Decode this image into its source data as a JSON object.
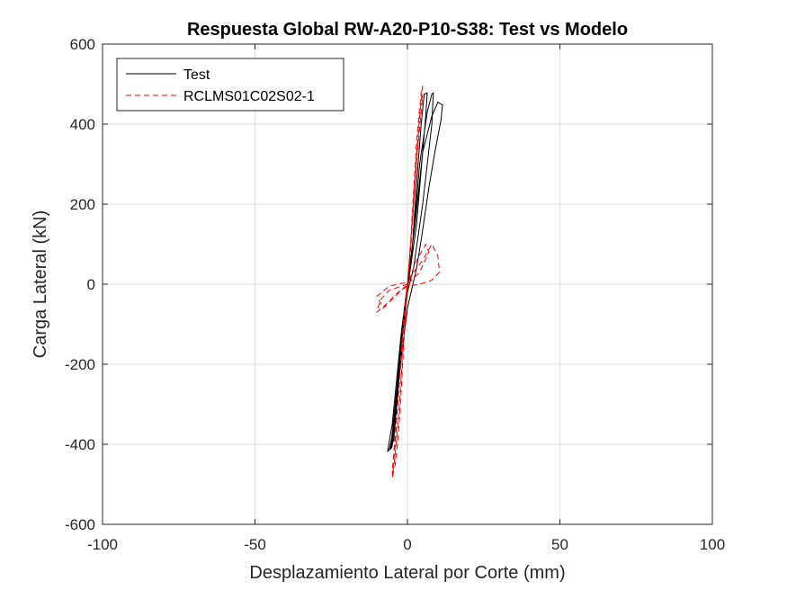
{
  "chart_data": {
    "type": "line",
    "title": "Respuesta Global RW-A20-P10-S38: Test vs Modelo",
    "xlabel": "Desplazamiento Lateral por Corte (mm)",
    "ylabel": "Carga Lateral (kN)",
    "xlim": [
      -100,
      100
    ],
    "ylim": [
      -600,
      600
    ],
    "xticks": [
      -100,
      -50,
      0,
      50,
      100
    ],
    "yticks": [
      -600,
      -400,
      -200,
      0,
      200,
      400,
      600
    ],
    "xtick_labels": [
      "-100",
      "-50",
      "0",
      "50",
      "100"
    ],
    "ytick_labels": [
      "-600",
      "-400",
      "-200",
      "0",
      "200",
      "400",
      "600"
    ],
    "grid": true,
    "legend_position": "top-left",
    "series": [
      {
        "name": "Test",
        "color": "#000000",
        "style": "solid",
        "points": [
          [
            0,
            0
          ],
          [
            1.5,
            80
          ],
          [
            3,
            250
          ],
          [
            4.5,
            400
          ],
          [
            5.5,
            475
          ],
          [
            6.5,
            478
          ],
          [
            6,
            420
          ],
          [
            3,
            150
          ],
          [
            1,
            40
          ],
          [
            0,
            -10
          ],
          [
            -1.5,
            -100
          ],
          [
            -3,
            -260
          ],
          [
            -4.5,
            -390
          ],
          [
            -6,
            -415
          ],
          [
            -5,
            -380
          ],
          [
            -2,
            -150
          ],
          [
            -0.5,
            -30
          ],
          [
            0,
            0
          ],
          [
            2,
            120
          ],
          [
            4,
            300
          ],
          [
            6.5,
            430
          ],
          [
            8,
            475
          ],
          [
            8.5,
            478
          ],
          [
            8,
            400
          ],
          [
            5,
            200
          ],
          [
            2,
            40
          ],
          [
            0,
            -20
          ],
          [
            -2,
            -140
          ],
          [
            -4,
            -300
          ],
          [
            -5.5,
            -410
          ],
          [
            -6.5,
            -418
          ],
          [
            -5,
            -350
          ],
          [
            -2,
            -120
          ],
          [
            0,
            0
          ],
          [
            2.5,
            150
          ],
          [
            5,
            330
          ],
          [
            8,
            420
          ],
          [
            10,
            455
          ],
          [
            11,
            450
          ],
          [
            11.5,
            448
          ],
          [
            11,
            410
          ],
          [
            9,
            330
          ],
          [
            7,
            240
          ],
          [
            4.5,
            110
          ],
          [
            3,
            40
          ],
          [
            1.5,
            -10
          ],
          [
            0,
            -60
          ],
          [
            -2,
            -180
          ],
          [
            -4,
            -320
          ],
          [
            -5,
            -405
          ],
          [
            -5.5,
            -412
          ],
          [
            -4,
            -330
          ],
          [
            -2,
            -150
          ],
          [
            0,
            -20
          ],
          [
            1,
            10
          ]
        ]
      },
      {
        "name": "RCLMS01C02S02-1",
        "color": "#ff0000",
        "style": "dashed",
        "points": [
          [
            0,
            0
          ],
          [
            1,
            100
          ],
          [
            2,
            230
          ],
          [
            3,
            360
          ],
          [
            4,
            440
          ],
          [
            4.5,
            480
          ],
          [
            5,
            495
          ],
          [
            4,
            420
          ],
          [
            2.5,
            250
          ],
          [
            1,
            80
          ],
          [
            0,
            0
          ],
          [
            -1,
            -120
          ],
          [
            -2,
            -260
          ],
          [
            -3,
            -380
          ],
          [
            -4,
            -450
          ],
          [
            -5,
            -485
          ],
          [
            -4,
            -400
          ],
          [
            -2.5,
            -220
          ],
          [
            -1,
            -60
          ],
          [
            0,
            0
          ],
          [
            2,
            30
          ],
          [
            5,
            60
          ],
          [
            8,
            100
          ],
          [
            10,
            70
          ],
          [
            10.5,
            30
          ],
          [
            8,
            10
          ],
          [
            4,
            0
          ],
          [
            0,
            -5
          ],
          [
            -3,
            -20
          ],
          [
            -7,
            -50
          ],
          [
            -10,
            -70
          ],
          [
            -9,
            -40
          ],
          [
            -6,
            -15
          ],
          [
            -2,
            -5
          ],
          [
            0,
            0
          ],
          [
            1.5,
            150
          ],
          [
            3,
            330
          ],
          [
            4.5,
            460
          ],
          [
            5,
            470
          ],
          [
            3.5,
            350
          ],
          [
            1.5,
            150
          ],
          [
            0,
            0
          ],
          [
            -1.5,
            -170
          ],
          [
            -3,
            -340
          ],
          [
            -4.5,
            -460
          ],
          [
            -5,
            -470
          ],
          [
            -3.5,
            -330
          ],
          [
            -1.5,
            -140
          ],
          [
            0,
            0
          ],
          [
            3,
            60
          ],
          [
            6,
            100
          ],
          [
            7,
            80
          ],
          [
            4,
            30
          ],
          [
            0,
            0
          ],
          [
            -4,
            -30
          ],
          [
            -8,
            -60
          ],
          [
            -10,
            -30
          ],
          [
            -6,
            -5
          ],
          [
            -3,
            0
          ],
          [
            0,
            5
          ]
        ]
      }
    ]
  }
}
